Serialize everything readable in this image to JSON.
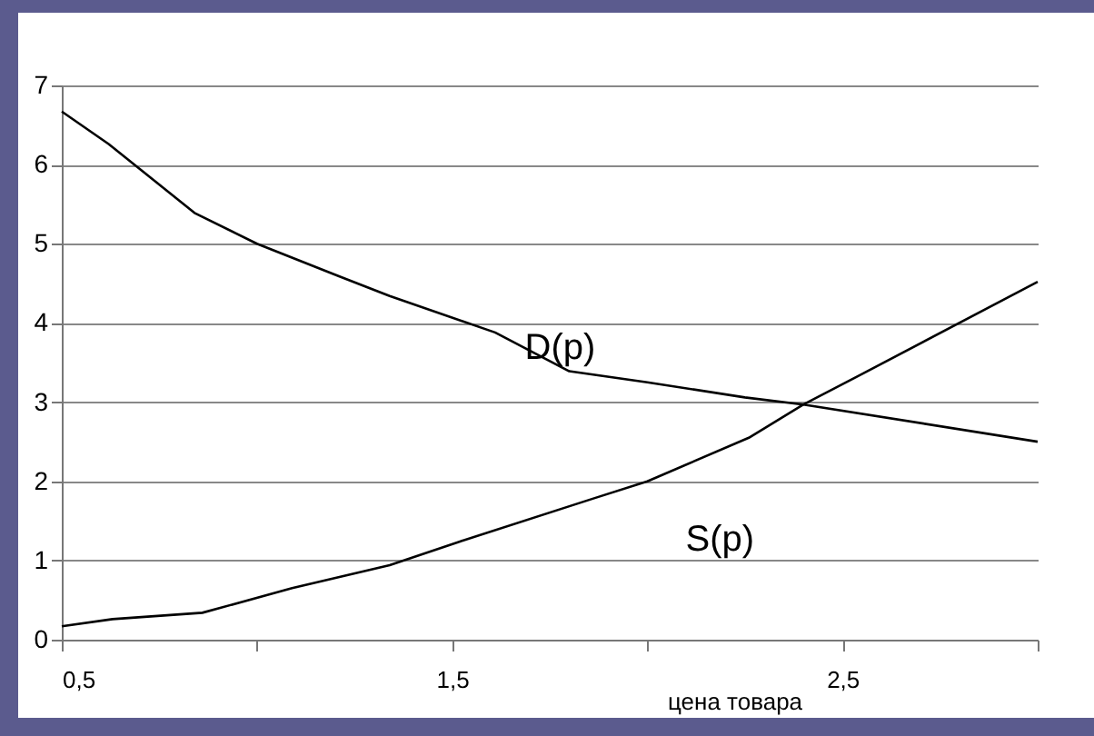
{
  "chart_data": {
    "type": "line",
    "xlabel": "цена товара",
    "xlim": [
      0.5,
      3
    ],
    "xticks": [
      {
        "value": 0.5,
        "label": "0,5"
      },
      {
        "value": 1,
        "label": null
      },
      {
        "value": 1.5,
        "label": "1,5"
      },
      {
        "value": 2,
        "label": null
      },
      {
        "value": 2.5,
        "label": "2,5"
      },
      {
        "value": 3,
        "label": null
      }
    ],
    "ylim": [
      0,
      7
    ],
    "yticks": [
      0,
      1,
      2,
      3,
      4,
      5,
      6,
      7
    ],
    "grid": "y",
    "marker": "none",
    "line_style": "solid",
    "legend": false,
    "series": [
      {
        "name": "D(p)",
        "color": "#000000",
        "x": [
          0.5,
          0.62,
          0.84,
          1.0,
          1.21,
          1.34,
          1.61,
          1.8,
          2.0,
          2.25,
          2.4,
          3.0
        ],
        "values": [
          6.67,
          6.26,
          5.39,
          5.0,
          4.59,
          4.34,
          3.88,
          3.39,
          3.25,
          3.06,
          2.97,
          2.5
        ]
      },
      {
        "name": "S(p)",
        "color": "#000000",
        "x": [
          0.5,
          0.63,
          0.86,
          1.09,
          1.34,
          1.52,
          1.86,
          2.0,
          2.26,
          2.4,
          2.54,
          3.0
        ],
        "values": [
          0.17,
          0.26,
          0.34,
          0.65,
          0.94,
          1.24,
          1.78,
          2.0,
          2.55,
          2.97,
          3.33,
          4.52
        ]
      }
    ]
  }
}
